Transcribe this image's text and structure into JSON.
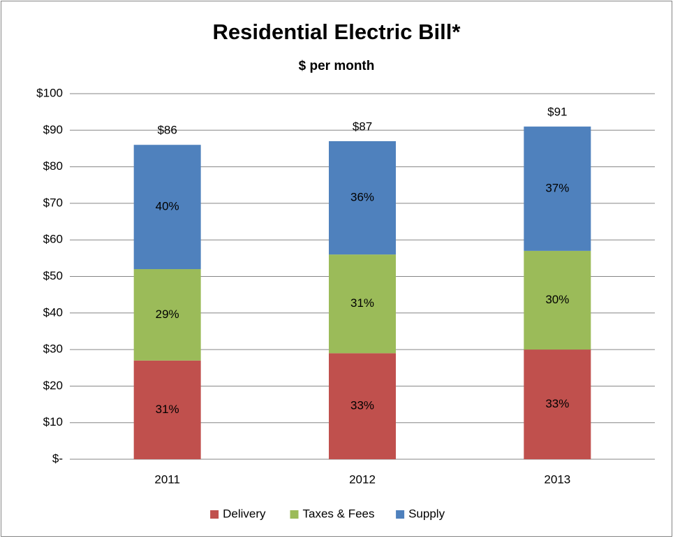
{
  "chart_data": {
    "type": "stacked_bar",
    "title": "Residential Electric Bill*",
    "subtitle": "$ per month",
    "categories": [
      "2011",
      "2012",
      "2013"
    ],
    "series": [
      {
        "name": "Delivery",
        "color": "#c0504d",
        "values": [
          27,
          29,
          30
        ],
        "labels": [
          "31%",
          "33%",
          "33%"
        ]
      },
      {
        "name": "Taxes & Fees",
        "color": "#9bbb59",
        "values": [
          25,
          27,
          27
        ],
        "labels": [
          "29%",
          "31%",
          "30%"
        ]
      },
      {
        "name": "Supply",
        "color": "#4f81bd",
        "values": [
          34,
          31,
          34
        ],
        "labels": [
          "40%",
          "36%",
          "37%"
        ]
      }
    ],
    "total_labels": [
      "$86",
      "$87",
      "$91"
    ],
    "ylim": [
      0,
      100
    ],
    "yticks": [
      {
        "value": 0,
        "label": "$-"
      },
      {
        "value": 10,
        "label": "$10"
      },
      {
        "value": 20,
        "label": "$20"
      },
      {
        "value": 30,
        "label": "$30"
      },
      {
        "value": 40,
        "label": "$40"
      },
      {
        "value": 50,
        "label": "$50"
      },
      {
        "value": 60,
        "label": "$60"
      },
      {
        "value": 70,
        "label": "$70"
      },
      {
        "value": 80,
        "label": "$80"
      },
      {
        "value": 90,
        "label": "$90"
      },
      {
        "value": 100,
        "label": "$100"
      }
    ],
    "grid": true,
    "legend": "bottom"
  }
}
